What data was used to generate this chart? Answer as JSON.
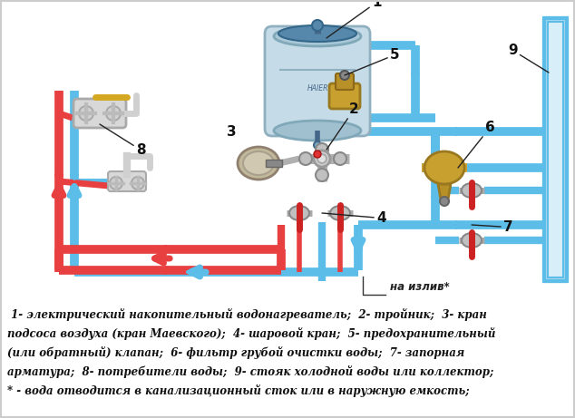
{
  "bg_color": "#ffffff",
  "legend_lines": [
    " 1- электрический накопительный водонагреватель;  2- тройник;  3- кран",
    "подсоса воздуха (кран Маевского);  4- шаровой кран;  5- предохранительный",
    "(или обратный) клапан;  6- фильтр грубой очистки воды;  7- запорная",
    "арматура;  8- потребители воды;  9- стояк холодной воды или коллектор;",
    "* - вода отводится в канализационный сток или в наружную емкость;"
  ],
  "cold": "#5bbde8",
  "hot": "#e84040",
  "pipe_lw": 7,
  "thin_pipe_lw": 4,
  "black": "#111111",
  "gray": "#b0b0b0",
  "dark_gray": "#888888",
  "gold": "#c8a030",
  "red_valve": "#cc2222",
  "boiler_light": "#c5dce8",
  "boiler_mid": "#90b8cc",
  "boiler_dark": "#4488aa",
  "collector_fill": "#b8ddf0",
  "collector_stroke": "#5bbde8"
}
